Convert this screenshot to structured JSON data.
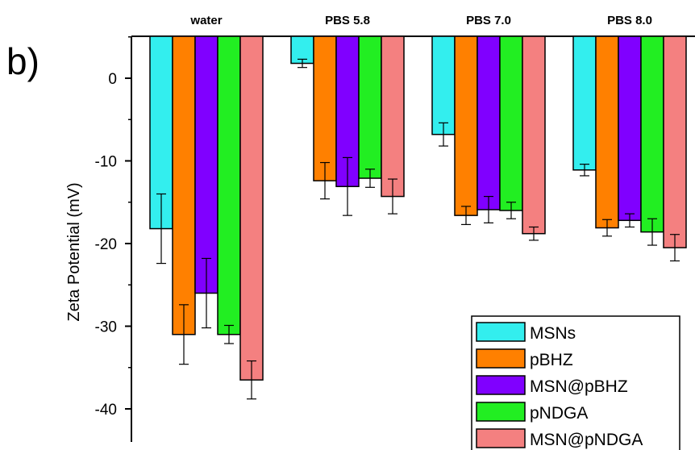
{
  "panel_label": "b)",
  "chart_data": {
    "type": "bar",
    "categories": [
      "water",
      "PBS 5.8",
      "PBS 7.0",
      "PBS 8.0"
    ],
    "ylabel": "Zeta Potential (mV)",
    "xlabel": "",
    "ylim": [
      -44,
      5
    ],
    "yticks": [
      0,
      -10,
      -20,
      -30,
      -40
    ],
    "legend_position": "bottom-right",
    "series": [
      {
        "name": "MSNs",
        "color": "#33eeee",
        "values": [
          -18.2,
          1.8,
          -6.8,
          -11.1
        ],
        "errors": [
          4.2,
          0.5,
          1.4,
          0.7
        ]
      },
      {
        "name": "pBHZ",
        "color": "#ff8000",
        "values": [
          -31.0,
          -12.4,
          -16.6,
          -18.1
        ],
        "errors": [
          3.6,
          2.2,
          1.1,
          1.0
        ]
      },
      {
        "name": "MSN@pBHZ",
        "color": "#8000ff",
        "values": [
          -26.0,
          -13.1,
          -15.9,
          -17.2
        ],
        "errors": [
          4.2,
          3.5,
          1.6,
          0.8
        ]
      },
      {
        "name": "pNDGA",
        "color": "#22ee22",
        "values": [
          -31.0,
          -12.1,
          -16.0,
          -18.6
        ],
        "errors": [
          1.1,
          1.1,
          1.0,
          1.6
        ]
      },
      {
        "name": "MSN@pNDGA",
        "color": "#f48080",
        "values": [
          -36.5,
          -14.3,
          -18.8,
          -20.5
        ],
        "errors": [
          2.3,
          2.1,
          0.8,
          1.6
        ]
      }
    ]
  }
}
